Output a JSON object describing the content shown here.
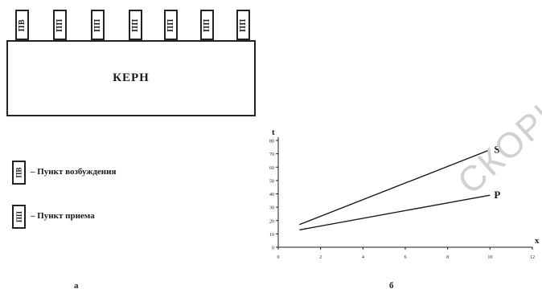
{
  "diagram": {
    "sensor_labels": [
      "ПВ",
      "ПП",
      "ПП",
      "ПП",
      "ПП",
      "ПП",
      "ПП"
    ],
    "core_label": "КЕРН",
    "legend": [
      {
        "symbol": "ПВ",
        "text": "– Пункт возбуждения"
      },
      {
        "symbol": "ПП",
        "text": "– Пункт приема"
      }
    ],
    "label_a": "а",
    "label_b": "б"
  },
  "watermark": "СКОРИН",
  "chart_data": {
    "type": "line",
    "ylabel": "t",
    "xlabel": "x",
    "xlim": [
      0,
      12
    ],
    "ylim": [
      0,
      80
    ],
    "x_ticks": [
      0,
      2,
      4,
      6,
      8,
      10,
      12
    ],
    "x_tick_labels": [
      "0",
      "2",
      "4",
      "6",
      "8",
      "10",
      "12"
    ],
    "y_ticks": [
      0,
      10,
      20,
      30,
      40,
      50,
      60,
      70,
      80
    ],
    "y_tick_labels": [
      "0",
      "10",
      "20",
      "30",
      "40",
      "50",
      "60",
      "70",
      "80"
    ],
    "series": [
      {
        "name": "S",
        "x": [
          1,
          10
        ],
        "y": [
          17,
          73
        ]
      },
      {
        "name": "P",
        "x": [
          1,
          10
        ],
        "y": [
          13,
          39
        ]
      }
    ],
    "grid": false,
    "line_color": "#1a1a1a"
  }
}
